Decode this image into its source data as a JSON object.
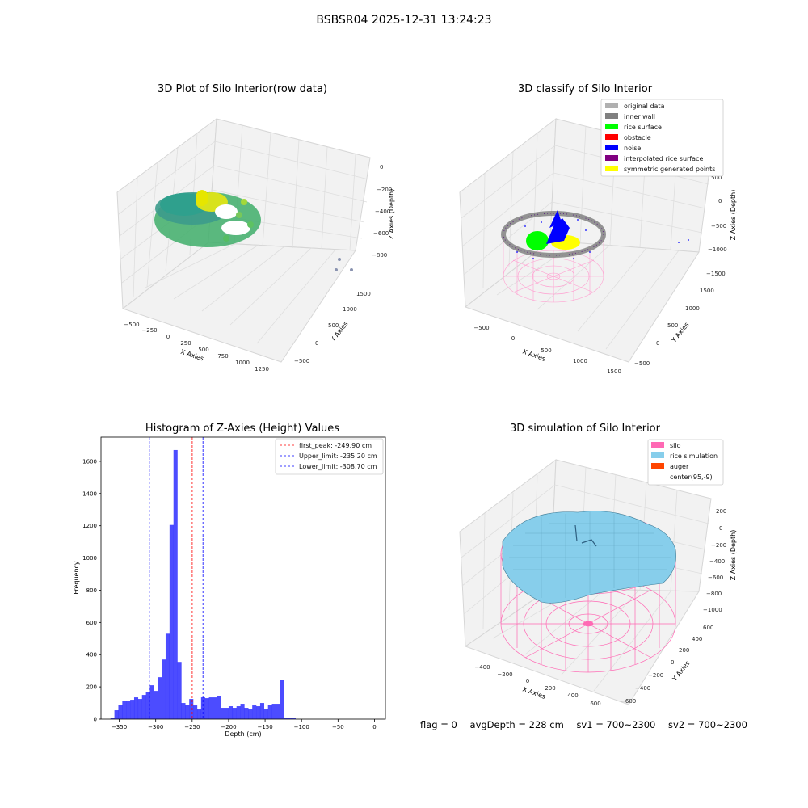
{
  "suptitle": "BSBSR04 2025-12-31 13:24:23",
  "panels": {
    "raw": {
      "title": "3D Plot of Silo Interior(row data)",
      "xlabel": "X Axies",
      "ylabel": "Y Axies",
      "zlabel": "Z Axies (Depth)",
      "xticks": [
        "−500",
        "−250",
        "0",
        "250",
        "500",
        "750",
        "1000",
        "1250"
      ],
      "yticks": [
        "−500",
        "0",
        "500",
        "1000",
        "1500"
      ],
      "zticks": [
        "0",
        "−200",
        "−400",
        "−600",
        "−800"
      ]
    },
    "classify": {
      "title": "3D classify of Silo Interior",
      "xlabel": "X Axies",
      "ylabel": "Y Axies",
      "zlabel": "Z Axies (Depth)",
      "xticks": [
        "−500",
        "0",
        "500",
        "1000",
        "1500"
      ],
      "yticks": [
        "−500",
        "0",
        "500",
        "1000",
        "1500"
      ],
      "zticks": [
        "500",
        "0",
        "−500",
        "−1000",
        "−1500"
      ],
      "legend": [
        {
          "label": "original data",
          "color": "#b0b0b0"
        },
        {
          "label": "inner wall",
          "color": "#808080"
        },
        {
          "label": "rice surface",
          "color": "#00ff00"
        },
        {
          "label": "obstacle",
          "color": "#ff0000"
        },
        {
          "label": "noise",
          "color": "#0000ff"
        },
        {
          "label": "interpolated rice surface",
          "color": "#800080"
        },
        {
          "label": "symmetric generated points",
          "color": "#ffff00"
        }
      ]
    },
    "simulation": {
      "title": "3D simulation of Silo Interior",
      "xlabel": "X Axies",
      "ylabel": "Y Axies",
      "zlabel": "Z Axies (Depth)",
      "xticks": [
        "−400",
        "−200",
        "0",
        "200",
        "400",
        "600"
      ],
      "yticks": [
        "−600",
        "−400",
        "−200",
        "0",
        "200",
        "400",
        "600"
      ],
      "zticks": [
        "200",
        "0",
        "−200",
        "−400",
        "−600",
        "−800",
        "−1000"
      ],
      "legend": [
        {
          "label": "silo",
          "color": "#ff69b4"
        },
        {
          "label": "rice simulation",
          "color": "#87ceeb"
        },
        {
          "label": "auger",
          "color": "#ff4500"
        },
        {
          "label": "center(95,-9)",
          "color": ""
        }
      ]
    }
  },
  "chart_data": {
    "type": "bar",
    "title": "Histogram of Z-Axies (Height) Values",
    "xlabel": "Depth (cm)",
    "ylabel": "Frequency",
    "xlim": [
      -375,
      15
    ],
    "ylim": [
      0,
      1750
    ],
    "xticks": [
      -350,
      -300,
      -250,
      -200,
      -150,
      -100,
      -50,
      0
    ],
    "yticks": [
      0,
      200,
      400,
      600,
      800,
      1000,
      1200,
      1400,
      1600
    ],
    "bin_width": 5.4,
    "bin_start": -362,
    "color": "#0000ff",
    "values": [
      10,
      55,
      90,
      115,
      115,
      120,
      135,
      125,
      150,
      170,
      210,
      175,
      260,
      370,
      530,
      1205,
      1670,
      355,
      100,
      90,
      125,
      85,
      60,
      135,
      130,
      135,
      135,
      145,
      70,
      70,
      80,
      70,
      80,
      95,
      70,
      60,
      85,
      80,
      100,
      65,
      90,
      95,
      95,
      245,
      5,
      10,
      5
    ],
    "lines": [
      {
        "label": "first_peak: -249.90 cm",
        "x": -249.9,
        "color": "#ff0000"
      },
      {
        "label": "Upper_limit: -235.20 cm",
        "x": -235.2,
        "color": "#0000ff"
      },
      {
        "label": "Lower_limit: -308.70 cm",
        "x": -308.7,
        "color": "#0000ff"
      }
    ],
    "legend_position": "top-right"
  },
  "footer": {
    "flag": "flag = 0",
    "avg": "avgDepth = 228 cm",
    "sv1": "sv1 = 700~2300",
    "sv2": "sv2 = 700~2300"
  }
}
